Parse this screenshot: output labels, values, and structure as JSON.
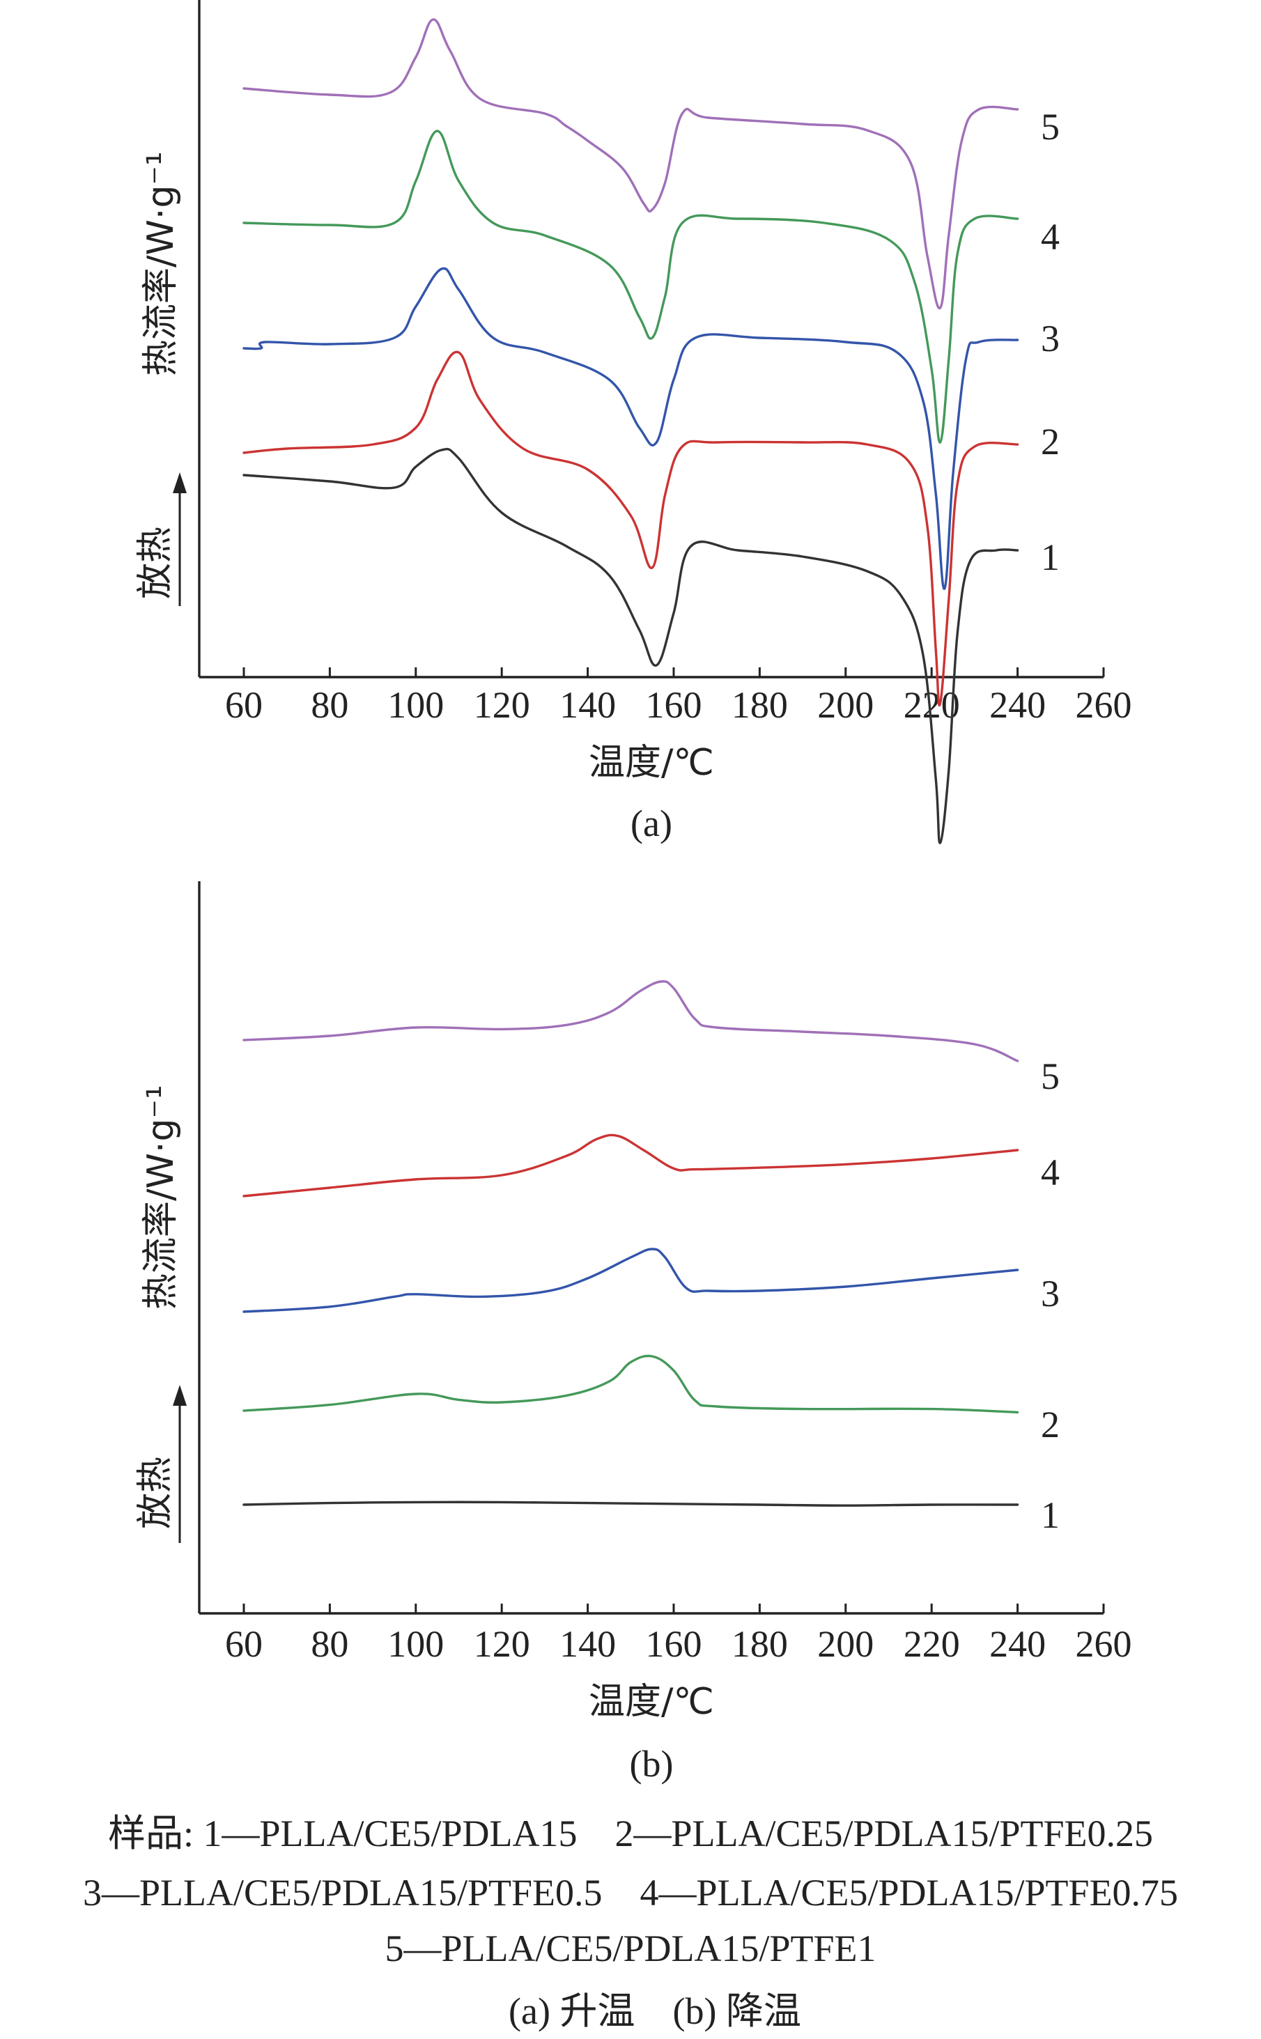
{
  "chart_data": [
    {
      "type": "line",
      "panel_label": "(a)",
      "xlabel": "温度/℃",
      "ylabel": "热流率/W·g⁻¹",
      "direction_label": "放热",
      "xlim": [
        50,
        260
      ],
      "xticks": [
        60,
        80,
        100,
        120,
        140,
        160,
        180,
        200,
        220,
        240,
        260
      ],
      "series": [
        {
          "name": "1",
          "color": "#333333",
          "x": [
            60,
            80,
            95,
            100,
            106,
            110,
            120,
            135,
            145,
            152,
            156,
            160,
            164,
            175,
            190,
            205,
            213,
            218,
            221,
            222,
            224,
            226,
            229,
            235,
            240
          ],
          "y": [
            0.36,
            0.33,
            0.3,
            0.4,
            0.48,
            0.44,
            0.18,
            0.02,
            -0.12,
            -0.38,
            -0.55,
            -0.3,
            0.02,
            0.0,
            -0.03,
            -0.1,
            -0.22,
            -0.5,
            -1.1,
            -1.4,
            -1.05,
            -0.4,
            -0.05,
            0.0,
            0.0
          ]
        },
        {
          "name": "2",
          "color": "#cc3333",
          "x": [
            60,
            70,
            90,
            100,
            105,
            110,
            115,
            125,
            140,
            150,
            155,
            158,
            162,
            170,
            190,
            205,
            215,
            219,
            221,
            222,
            224,
            226,
            230,
            240
          ],
          "y": [
            0.0,
            0.02,
            0.04,
            0.12,
            0.35,
            0.48,
            0.25,
            0.02,
            -0.08,
            -0.3,
            -0.55,
            -0.2,
            0.03,
            0.05,
            0.05,
            0.04,
            -0.05,
            -0.35,
            -0.95,
            -1.2,
            -0.7,
            -0.15,
            0.03,
            0.04
          ]
        },
        {
          "name": "3",
          "color": "#3355aa",
          "x": [
            60,
            64,
            65,
            80,
            95,
            100,
            106,
            110,
            118,
            130,
            145,
            152,
            156,
            160,
            165,
            180,
            200,
            212,
            218,
            221,
            223,
            225,
            228,
            231,
            240
          ],
          "y": [
            0.0,
            0.0,
            0.03,
            0.02,
            0.05,
            0.2,
            0.38,
            0.28,
            0.05,
            -0.02,
            -0.15,
            -0.38,
            -0.45,
            -0.15,
            0.05,
            0.05,
            0.03,
            -0.02,
            -0.25,
            -0.7,
            -1.15,
            -0.6,
            -0.05,
            0.03,
            0.04
          ]
        },
        {
          "name": "4",
          "color": "#44995a",
          "x": [
            60,
            80,
            95,
            100,
            105,
            110,
            118,
            130,
            145,
            152,
            155,
            158,
            162,
            175,
            195,
            210,
            216,
            220,
            222,
            224,
            226,
            230,
            240
          ],
          "y": [
            0.0,
            -0.01,
            0.0,
            0.2,
            0.44,
            0.2,
            0.0,
            -0.06,
            -0.2,
            -0.45,
            -0.55,
            -0.35,
            0.0,
            0.02,
            0.0,
            -0.08,
            -0.28,
            -0.7,
            -1.05,
            -0.65,
            -0.15,
            0.02,
            0.02
          ]
        },
        {
          "name": "5",
          "color": "#a070b8",
          "x": [
            60,
            80,
            94,
            100,
            104,
            108,
            115,
            130,
            135,
            140,
            148,
            153,
            155,
            158,
            162,
            168,
            190,
            205,
            215,
            219,
            222,
            224,
            227,
            231,
            240
          ],
          "y": [
            0.0,
            -0.03,
            -0.02,
            0.15,
            0.33,
            0.18,
            -0.05,
            -0.12,
            -0.18,
            -0.25,
            -0.38,
            -0.55,
            -0.58,
            -0.45,
            -0.12,
            -0.14,
            -0.17,
            -0.2,
            -0.35,
            -0.8,
            -1.05,
            -0.7,
            -0.25,
            -0.1,
            -0.1
          ]
        }
      ],
      "curve_labels": [
        "5",
        "4",
        "3",
        "2",
        "1"
      ]
    },
    {
      "type": "line",
      "panel_label": "(b)",
      "xlabel": "温度/℃",
      "ylabel": "热流率/W·g⁻¹",
      "direction_label": "放热",
      "xlim": [
        50,
        260
      ],
      "xticks": [
        60,
        80,
        100,
        120,
        140,
        160,
        180,
        200,
        220,
        240,
        260
      ],
      "series": [
        {
          "name": "1",
          "color": "#333333",
          "x": [
            60,
            80,
            100,
            120,
            140,
            160,
            180,
            200,
            220,
            240
          ],
          "y": [
            0.0,
            0.02,
            0.03,
            0.03,
            0.02,
            0.01,
            0.0,
            -0.01,
            0.0,
            0.0
          ]
        },
        {
          "name": "2",
          "color": "#44995a",
          "x": [
            60,
            80,
            100,
            110,
            120,
            135,
            145,
            150,
            155,
            160,
            165,
            170,
            190,
            220,
            240
          ],
          "y": [
            0.0,
            0.07,
            0.2,
            0.13,
            0.1,
            0.18,
            0.35,
            0.58,
            0.65,
            0.48,
            0.12,
            0.05,
            0.02,
            0.02,
            -0.02
          ]
        },
        {
          "name": "3",
          "color": "#3355aa",
          "x": [
            60,
            80,
            95,
            100,
            115,
            130,
            140,
            150,
            155,
            158,
            163,
            168,
            180,
            200,
            220,
            240
          ],
          "y": [
            0.0,
            0.06,
            0.18,
            0.21,
            0.18,
            0.24,
            0.4,
            0.65,
            0.75,
            0.65,
            0.28,
            0.25,
            0.25,
            0.3,
            0.4,
            0.5
          ]
        },
        {
          "name": "4",
          "color": "#cc3333",
          "x": [
            60,
            80,
            100,
            120,
            135,
            142,
            147,
            153,
            160,
            165,
            180,
            200,
            220,
            240
          ],
          "y": [
            0.0,
            0.1,
            0.2,
            0.25,
            0.48,
            0.68,
            0.72,
            0.55,
            0.33,
            0.32,
            0.34,
            0.38,
            0.45,
            0.55
          ]
        },
        {
          "name": "5",
          "color": "#a070b8",
          "x": [
            60,
            80,
            100,
            120,
            135,
            145,
            152,
            157,
            160,
            165,
            170,
            190,
            210,
            230,
            240
          ],
          "y": [
            0.0,
            0.05,
            0.15,
            0.13,
            0.18,
            0.33,
            0.58,
            0.7,
            0.62,
            0.25,
            0.15,
            0.1,
            0.05,
            -0.05,
            -0.25
          ]
        }
      ],
      "curve_labels": [
        "5",
        "4",
        "3",
        "2",
        "1"
      ]
    }
  ],
  "caption": {
    "samples_line1": "样品: 1—PLLA/CE5/PDLA15    2—PLLA/CE5/PDLA15/PTFE0.25",
    "samples_line2": "3—PLLA/CE5/PDLA15/PTFE0.5    4—PLLA/CE5/PDLA15/PTFE0.75",
    "samples_line3": "5—PLLA/CE5/PDLA15/PTFE1",
    "subcaption": "(a) 升温    (b) 降温"
  }
}
